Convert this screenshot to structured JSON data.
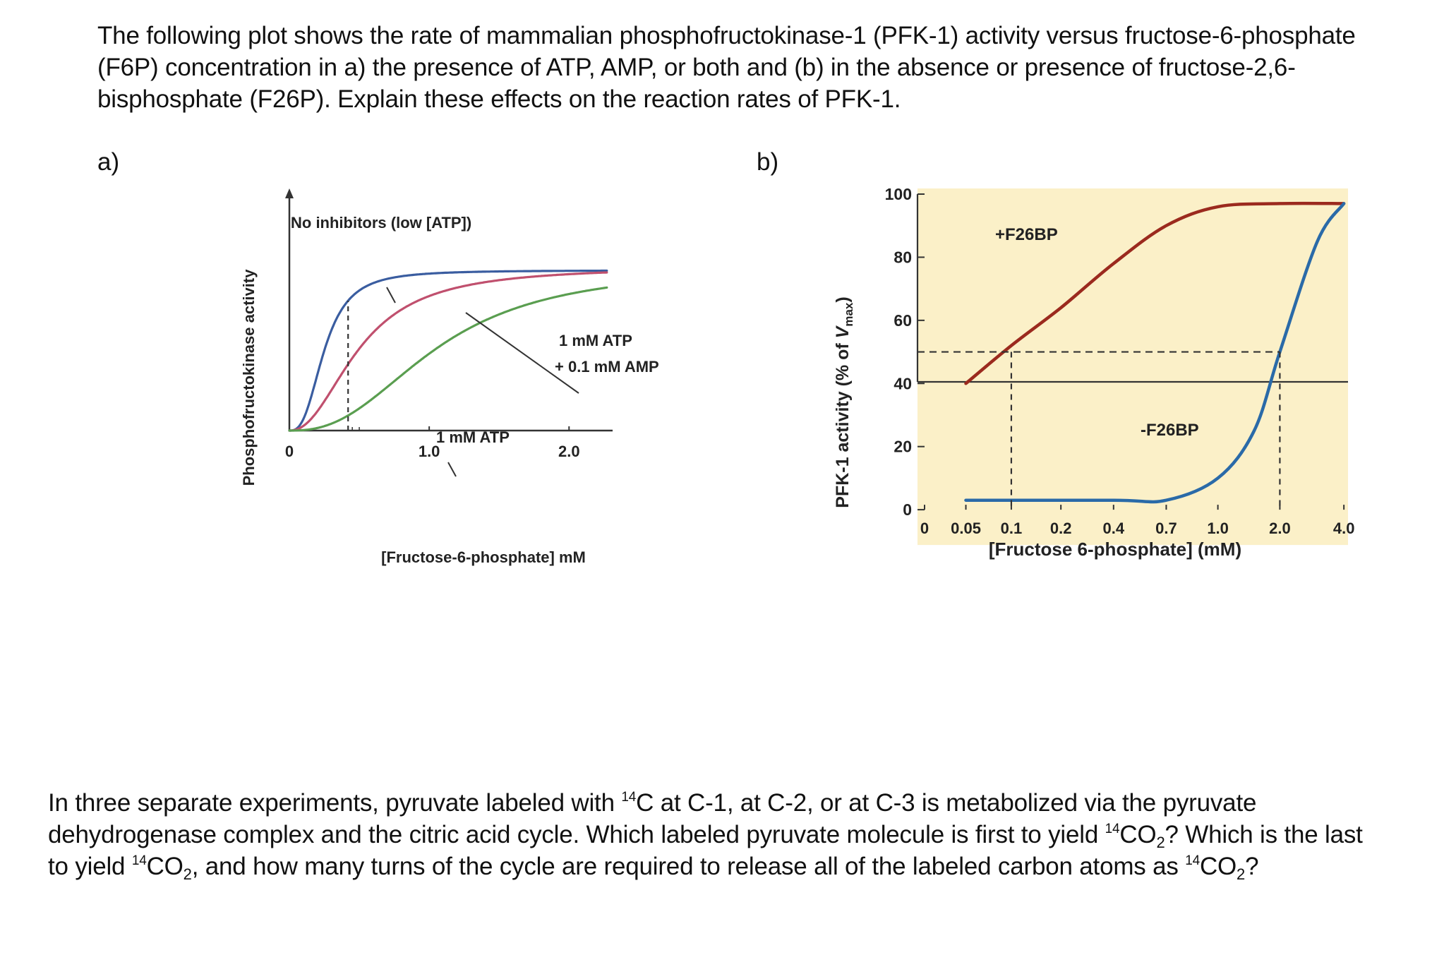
{
  "question1": {
    "text": "The following plot shows the rate of mammalian phosphofructokinase-1 (PFK-1) activity versus fructose-6-phosphate (F6P) concentration in a) the presence of ATP, AMP, or both and (b) in the absence or presence of fructose-2,6-bisphosphate (F26P).  Explain these effects on the reaction rates of PFK-1."
  },
  "panel_a": {
    "label": "a)"
  },
  "panel_b": {
    "label": "b)"
  },
  "chart_data": [
    {
      "type": "line",
      "panel": "a",
      "title": "",
      "xlabel": "[Fructose-6-phosphate] mM",
      "ylabel": "Phosphofructokinase activity",
      "xlim": [
        0,
        2.4
      ],
      "ylim": [
        0,
        1
      ],
      "x_ticks": [
        {
          "value": 0,
          "label": "0"
        },
        {
          "value": 1.0,
          "label": "1.0"
        },
        {
          "value": 2.0,
          "label": "2.0"
        }
      ],
      "series": [
        {
          "name": "No inhibitors (low [ATP])",
          "color": "#3a5da0",
          "K": 0.25,
          "n": 2.8,
          "vmax": 0.89
        },
        {
          "name": "1 mM ATP + 0.1 mM AMP",
          "color": "#c0506e",
          "K": 0.5,
          "n": 2.2,
          "vmax": 0.91
        },
        {
          "name": "1 mM ATP",
          "color": "#5a9e50",
          "K": 1.05,
          "n": 2.5,
          "vmax": 0.91
        }
      ],
      "annotations": [
        "No inhibitors (low [ATP])",
        "1 mM ATP",
        "+ 0.1 mM AMP",
        "1 mM ATP"
      ],
      "reference_x": 0.42
    },
    {
      "type": "line",
      "panel": "b",
      "title": "",
      "xlabel": "[Fructose 6-phosphate] (mM)",
      "ylabel": "PFK-1 activity (% of Vmax)",
      "ylabel_parts": {
        "pre": "PFK-1 activity (% of ",
        "v": "V",
        "sub": "max",
        "post": ")"
      },
      "ylim": [
        0,
        100
      ],
      "y_ticks": [
        0,
        20,
        40,
        60,
        80,
        100
      ],
      "x_ticks": [
        "0",
        "0.05",
        "0.1",
        "0.2",
        "0.4",
        "0.7",
        "1.0",
        "2.0",
        "4.0"
      ],
      "series": [
        {
          "name": "+F26BP",
          "color": "#9b2a1e",
          "points": [
            [
              0.05,
              40
            ],
            [
              0.1,
              52
            ],
            [
              0.2,
              64
            ],
            [
              0.4,
              78
            ],
            [
              0.7,
              90
            ],
            [
              1.0,
              96
            ],
            [
              2.0,
              97
            ],
            [
              4.0,
              97
            ]
          ]
        },
        {
          "name": "-F26BP",
          "color": "#2a6aa8",
          "points": [
            [
              0.05,
              3
            ],
            [
              0.4,
              3
            ],
            [
              0.7,
              3
            ],
            [
              1.0,
              10
            ],
            [
              1.5,
              25
            ],
            [
              2.0,
              50
            ],
            [
              3.0,
              85
            ],
            [
              4.0,
              97
            ]
          ]
        }
      ],
      "half_vmax": 50,
      "reference_x": [
        0.1,
        2.0
      ]
    }
  ],
  "question2": {
    "part1": "In three separate experiments, pyruvate labeled with ",
    "iso": "14",
    "part2": "C at C-1, at C-2, or at C-3 is metabolized via the pyruvate dehydrogenase complex and the citric acid cycle.  Which labeled pyruvate molecule is first to yield ",
    "co": "CO",
    "sub": "2",
    "part3": "?  Which is the last to yield ",
    "part4": ", and how many turns of the cycle are required to release all of the labeled carbon atoms as ",
    "part5": "?"
  }
}
